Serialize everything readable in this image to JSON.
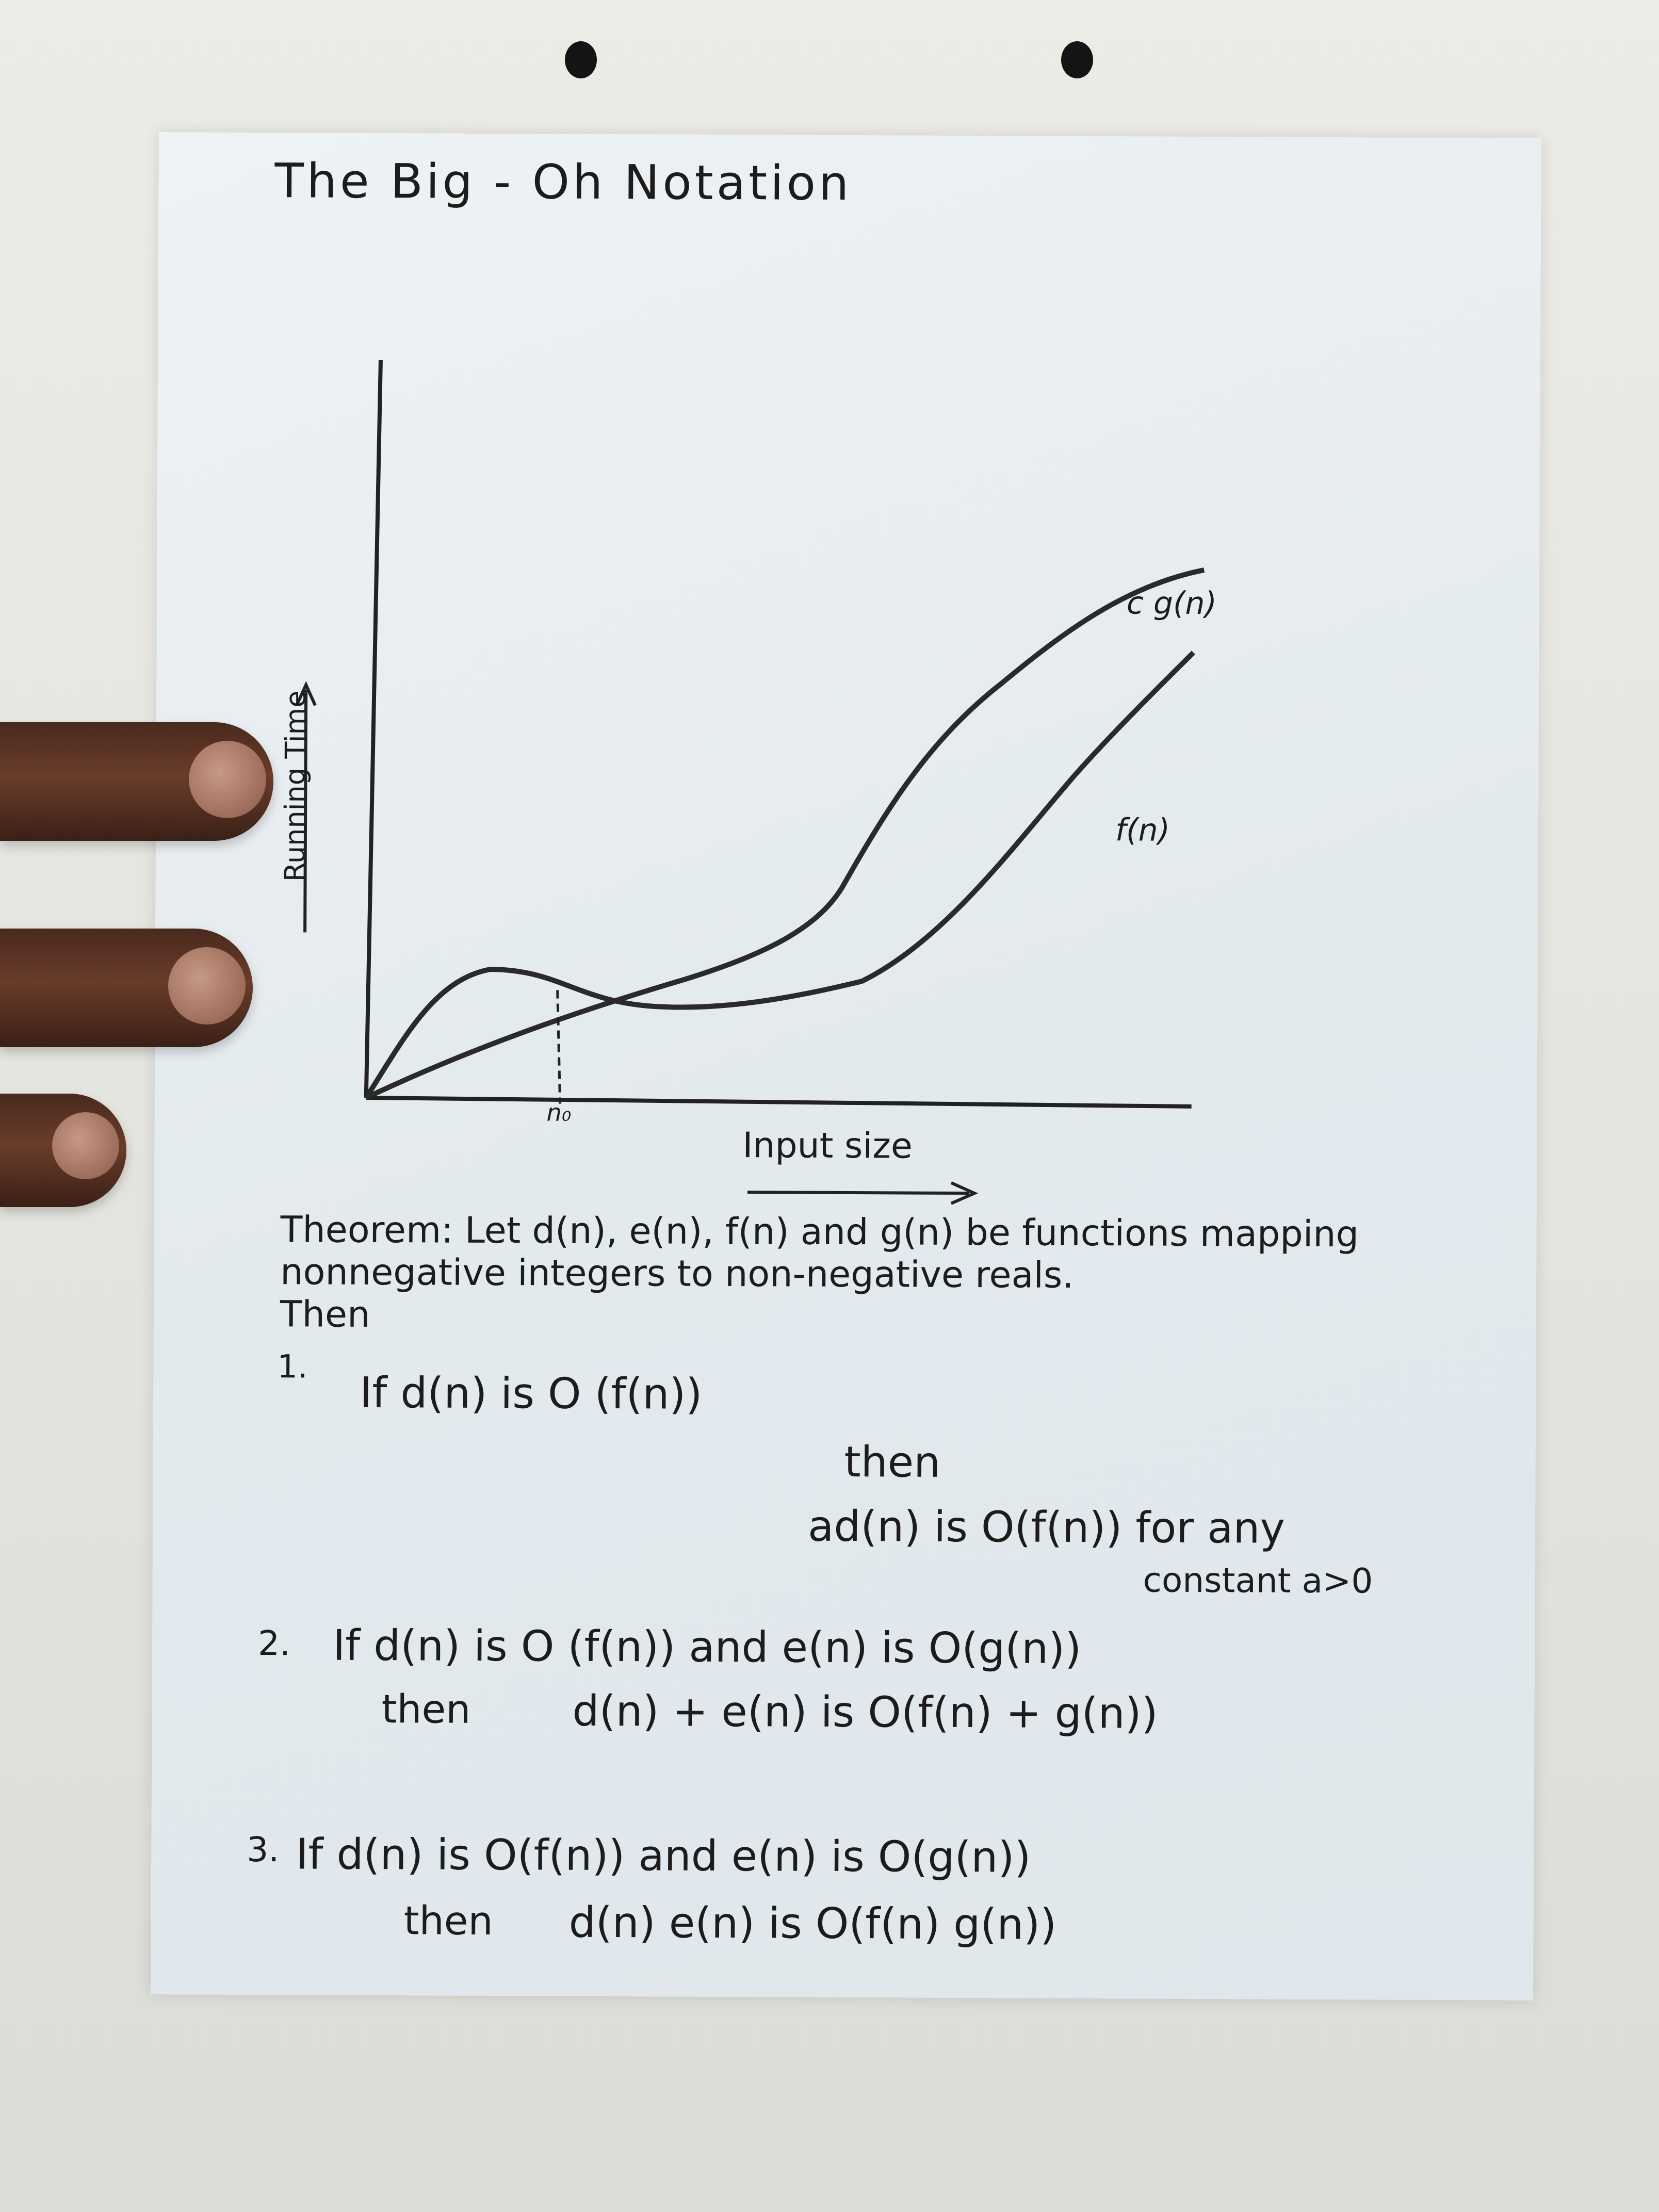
{
  "title": "The Big - Oh Notation",
  "graph": {
    "ylabel": "Running Time",
    "xlabel": "Input size",
    "curve_cg": "c g(n)",
    "curve_f": "f(n)",
    "n0": "n₀"
  },
  "theorem": {
    "heading": "Theorem:",
    "text": "Let d(n), e(n), f(n) and g(n) be functions mapping nonnegative integers to non-negative reals.",
    "then": "Then"
  },
  "rule1": {
    "num": "1.",
    "if_text": "If d(n) is O (f(n))",
    "then": "then",
    "result": "ad(n) is O(f(n)) for any",
    "cond": "constant a>0"
  },
  "rule2": {
    "num": "2.",
    "if_text": "If d(n) is O (f(n)) and e(n) is O(g(n))",
    "then": "then",
    "result": "d(n) + e(n) is O(f(n) + g(n))"
  },
  "rule3": {
    "num": "3.",
    "if_text": "If d(n) is O(f(n)) and e(n) is O(g(n))",
    "then": "then",
    "result": "d(n) e(n) is O(f(n) g(n))"
  }
}
